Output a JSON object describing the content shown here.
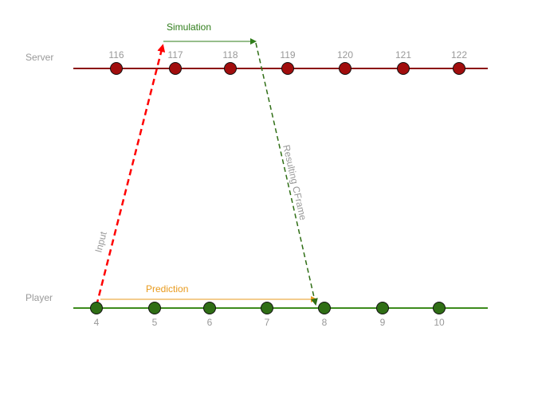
{
  "lanes": {
    "server": {
      "label": "Server",
      "ticks": [
        "116",
        "117",
        "118",
        "119",
        "120",
        "121",
        "122"
      ]
    },
    "player": {
      "label": "Player",
      "ticks": [
        "4",
        "5",
        "6",
        "7",
        "8",
        "9",
        "10"
      ]
    }
  },
  "arrows": {
    "input": {
      "label": "Input"
    },
    "simulation": {
      "label": "Simulation"
    },
    "result": {
      "label": "Resulting CFrame"
    },
    "prediction": {
      "label": "Prediction"
    }
  },
  "colors": {
    "server_line": "#8b0f0f",
    "server_node": "#a10d0d",
    "player_line": "#3c8a1c",
    "player_node": "#2f6e15",
    "input_arrow": "#ff0000",
    "simulation_arrow": "#2f7d1a",
    "result_arrow": "#2f6e15",
    "prediction_arrow": "#e89a1c",
    "muted_text": "#999999",
    "node_stroke": "#111111"
  }
}
